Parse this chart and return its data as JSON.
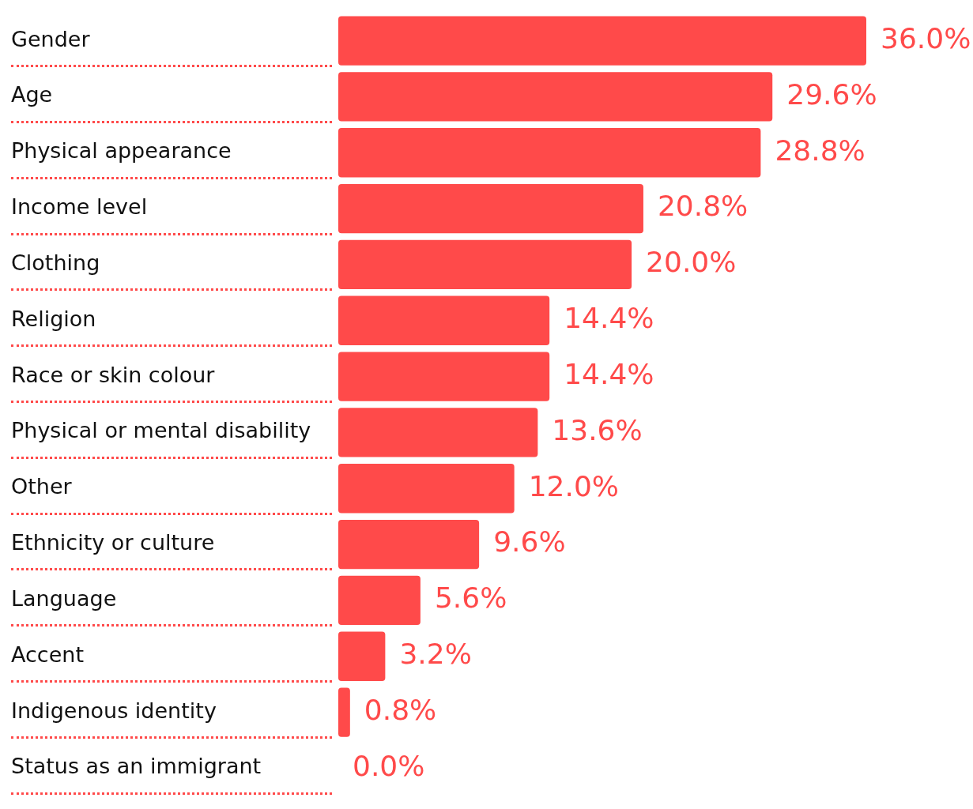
{
  "chart_data": {
    "type": "bar",
    "orientation": "horizontal",
    "categories": [
      "Gender",
      "Age",
      "Physical appearance",
      "Income level",
      "Clothing",
      "Religion",
      "Race or skin colour",
      "Physical or mental disability",
      "Other",
      "Ethnicity or culture",
      "Language",
      "Accent",
      "Indigenous identity",
      "Status as an immigrant"
    ],
    "values": [
      36.0,
      29.6,
      28.8,
      20.8,
      20.0,
      14.4,
      14.4,
      13.6,
      12.0,
      9.6,
      5.6,
      3.2,
      0.8,
      0.0
    ],
    "value_labels": [
      "36.0%",
      "29.6%",
      "28.8%",
      "20.8%",
      "20.0%",
      "14.4%",
      "14.4%",
      "13.6%",
      "12.0%",
      "9.6%",
      "5.6%",
      "3.2%",
      "0.8%",
      "0.0%"
    ],
    "color": "#ff4a4a",
    "tick_labels": "y",
    "grid": false,
    "legend": false
  }
}
